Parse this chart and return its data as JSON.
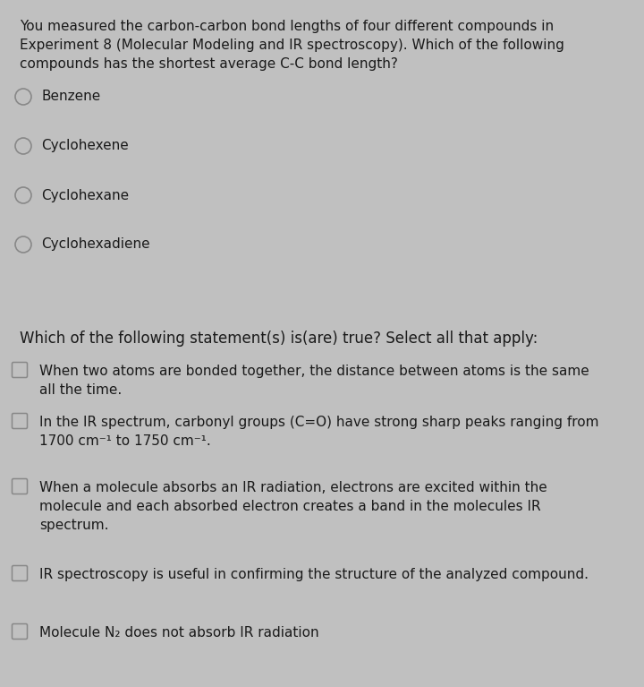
{
  "bg_top": "#d8d8d8",
  "bg_bottom": "#d8d8d8",
  "bg_gap": "#c0c0c0",
  "text_color": "#1a1a1a",
  "circle_color": "#888888",
  "checkbox_color": "#888888",
  "q1_question": "You measured the carbon-carbon bond lengths of four different compounds in\nExperiment 8 (Molecular Modeling and IR spectroscopy). Which of the following\ncompounds has the shortest average C-C bond length?",
  "q1_options": [
    "Benzene",
    "Cyclohexene",
    "Cyclohexane",
    "Cyclohexadiene"
  ],
  "q2_question": "Which of the following statement(s) is(are) true? Select all that apply:",
  "q2_options_line1": [
    "When two atoms are bonded together, the distance between atoms is the same",
    "In the IR spectrum, carbonyl groups (C=O) have strong sharp peaks ranging from",
    "When a molecule absorbs an IR radiation, electrons are excited within the",
    "IR spectroscopy is useful in confirming the structure of the analyzed compound.",
    "Molecule N₂ does not absorb IR radiation"
  ],
  "q2_options_line2": [
    "all the time.",
    "1700 cm⁻¹ to 1750 cm⁻¹.",
    "molecule and each absorbed electron creates a band in the molecules IR",
    "",
    ""
  ],
  "q2_options_line3": [
    "",
    "",
    "spectrum.",
    "",
    ""
  ],
  "font_size": 11.0,
  "font_size_q2q": 12.0,
  "fig_width": 7.2,
  "fig_height": 7.67
}
